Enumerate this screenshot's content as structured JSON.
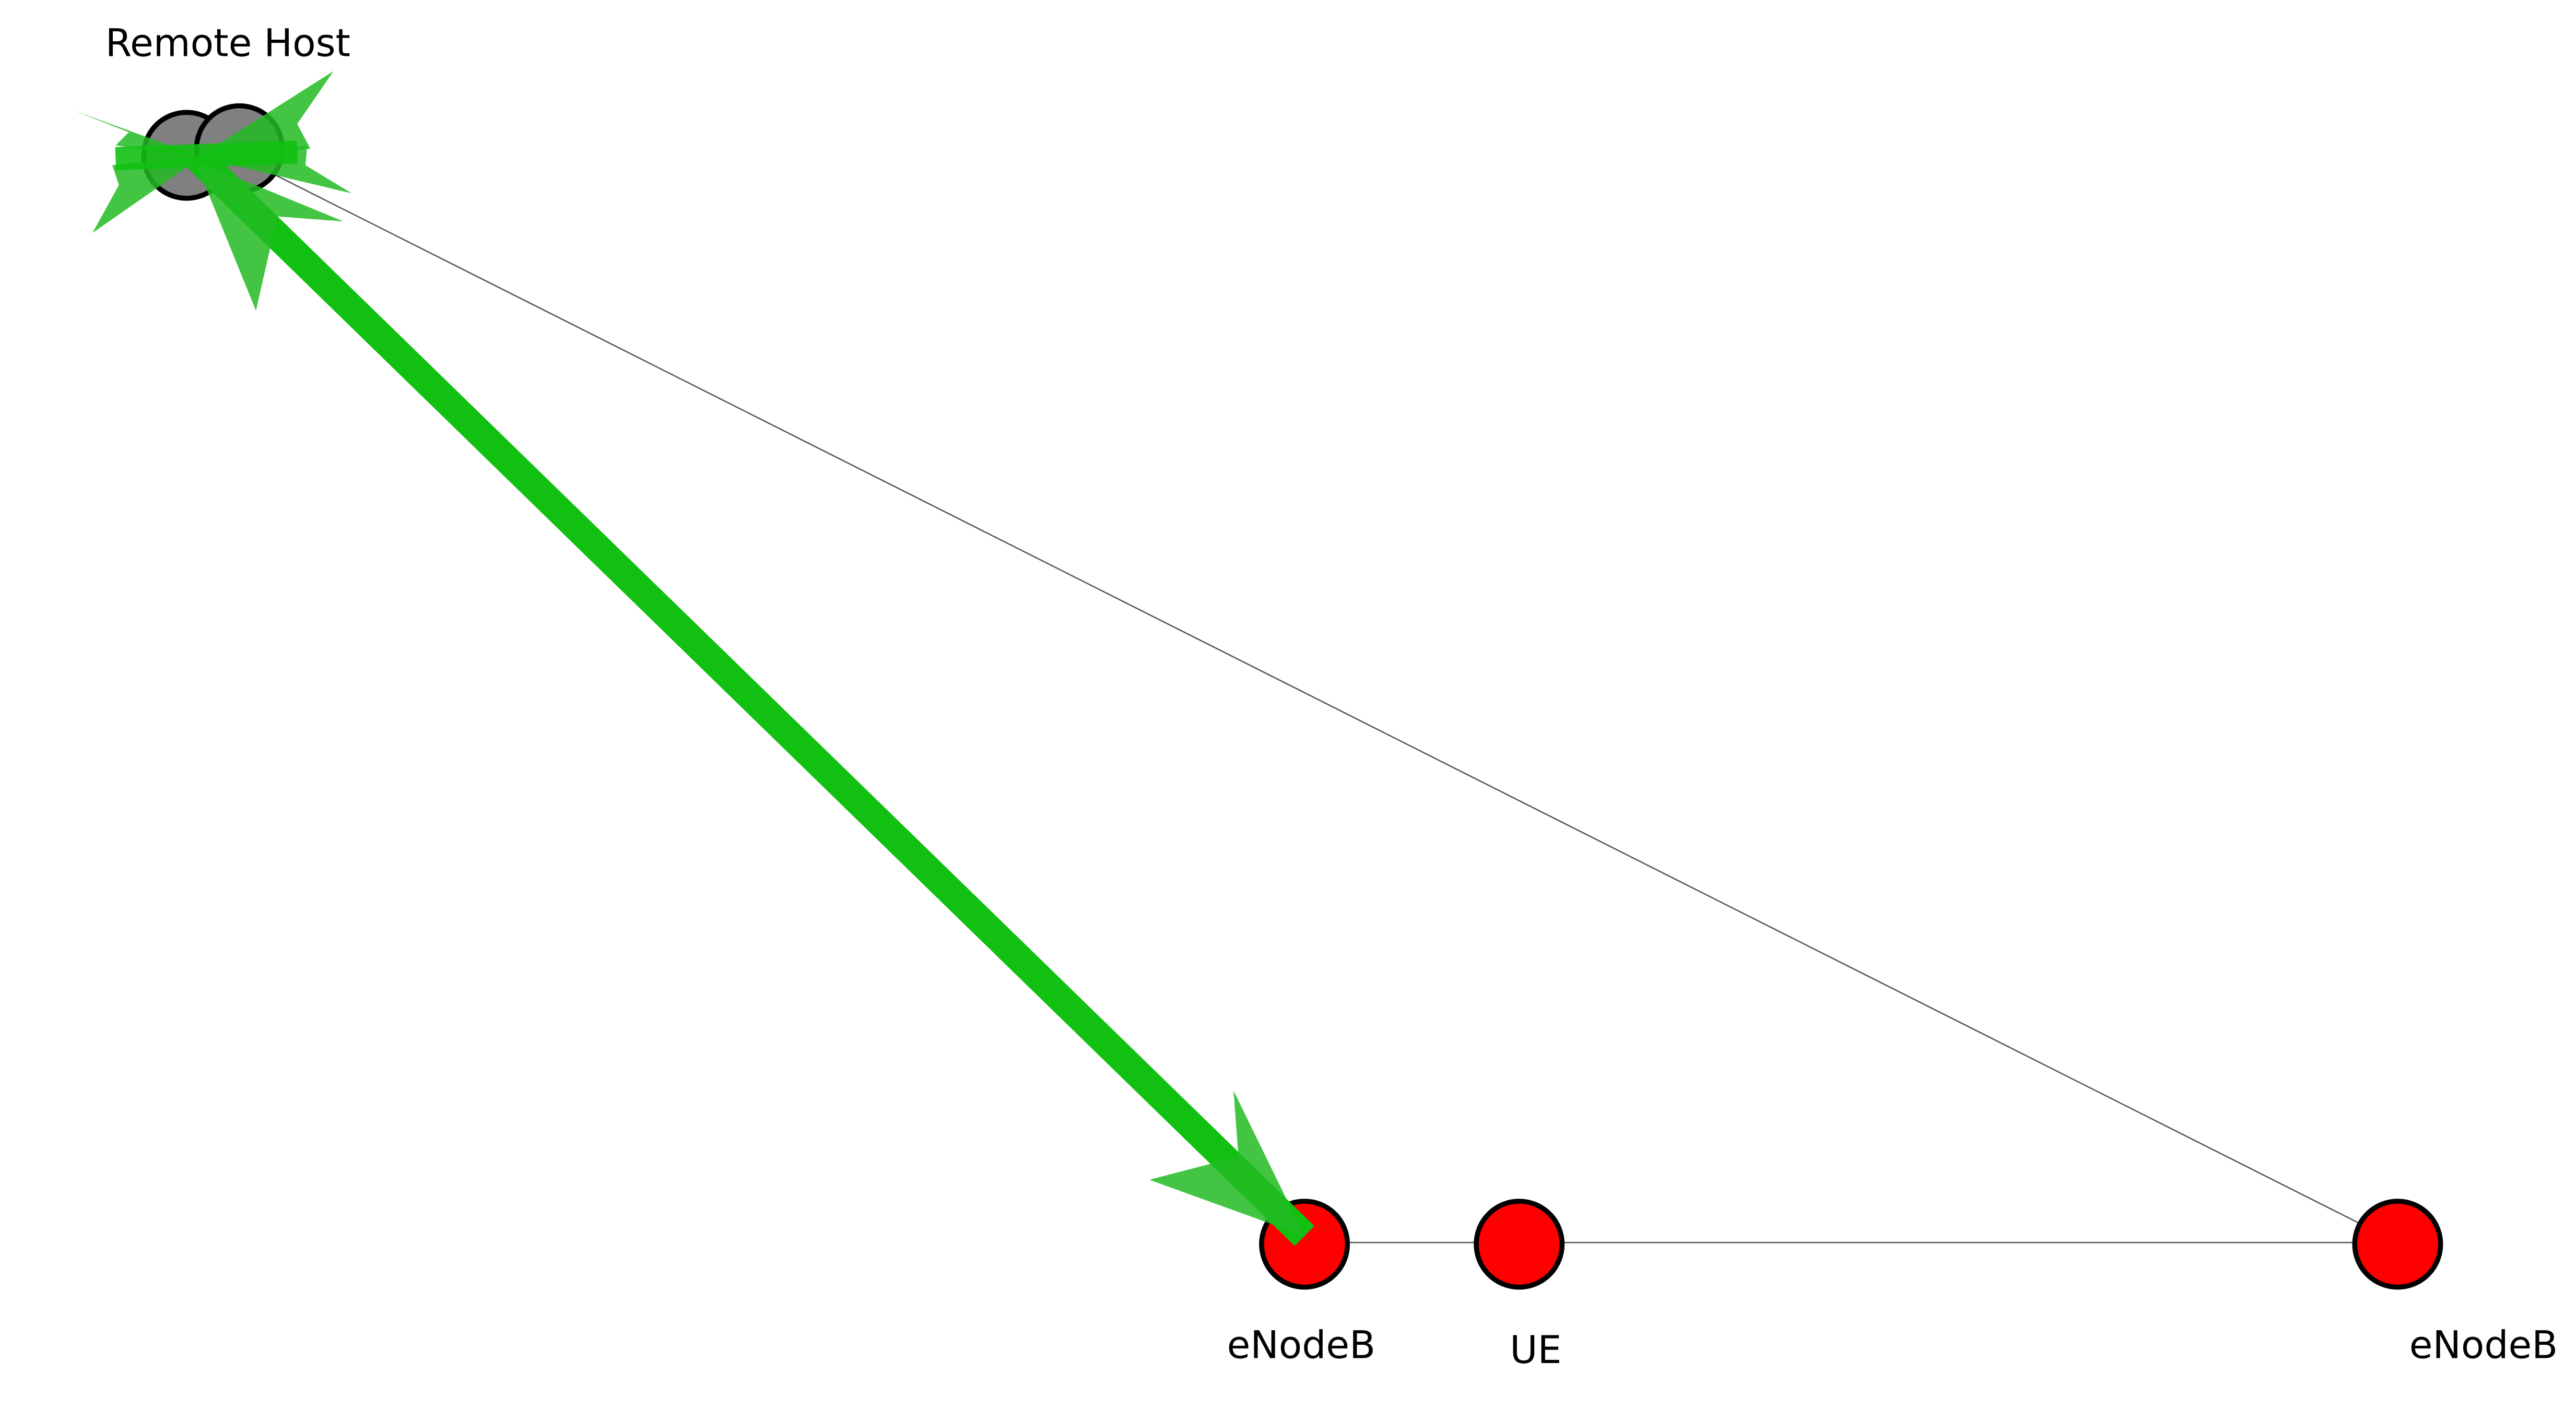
{
  "labels": {
    "remote_host": "Remote Host",
    "enodeb_1": "eNodeB",
    "ue": "UE",
    "enodeb_2": "eNodeB"
  },
  "colors": {
    "background": "#ffffff",
    "link": "#555555",
    "flow": "#11c011",
    "flow_arrowhead": "#22bb22",
    "node_remote_host": "#808080",
    "node_radio": "#ff0000",
    "node_stroke": "#000000"
  }
}
